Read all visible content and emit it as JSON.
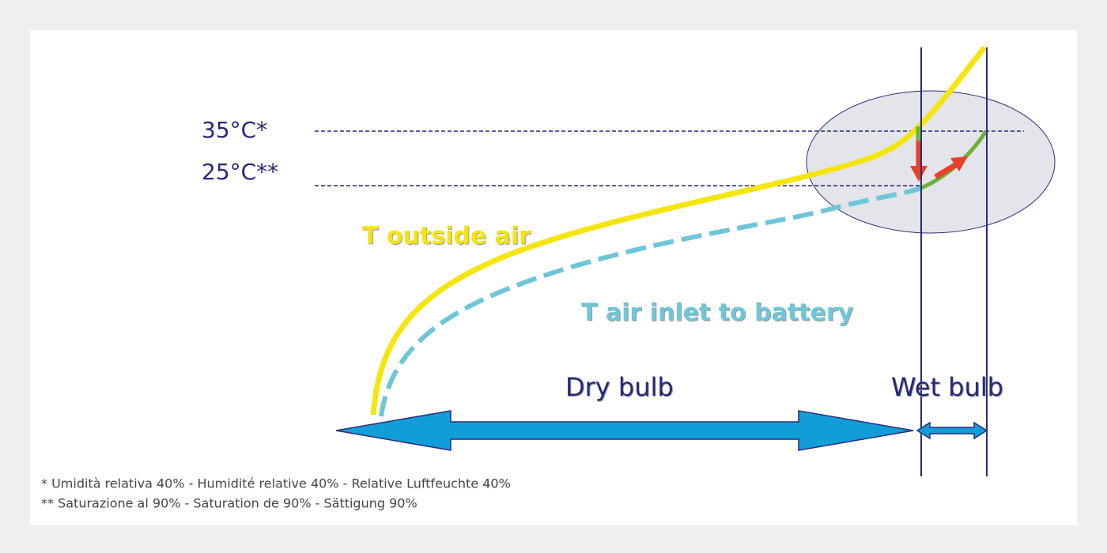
{
  "labels": {
    "temp_high": "35°C*",
    "temp_low": "25°C**",
    "outside_air": "T outside air",
    "inlet_air": "T air inlet to battery",
    "dry_bulb": "Dry bulb",
    "wet_bulb": "Wet bulb"
  },
  "footnotes": [
    "* Umidità relativa 40% - Humidité relative 40% - Relative Luftfeuchte 40%",
    "** Saturazione al 90% - Saturation de 90% - Sättigung 90%"
  ]
}
